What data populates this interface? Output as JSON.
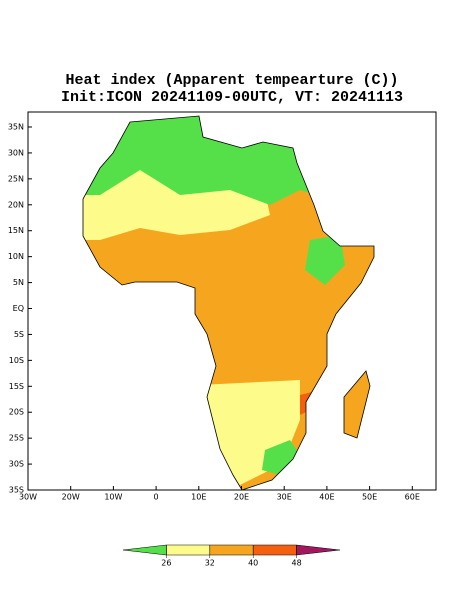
{
  "title": "Heat index (Apparent tempearture (C))",
  "subtitle": "Init:ICON 20241109-00UTC, VT: 20241113",
  "lat_labels": [
    "35N",
    "30N",
    "25N",
    "20N",
    "15N",
    "10N",
    "5N",
    "EQ",
    "5S",
    "10S",
    "15S",
    "20S",
    "25S",
    "30S",
    "35S"
  ],
  "lon_labels": [
    "30W",
    "20W",
    "10W",
    "0",
    "10E",
    "20E",
    "30E",
    "40E",
    "50E",
    "60E"
  ],
  "colorbar": {
    "colors": [
      "#55e04a",
      "#fdfb8a",
      "#f5a61e",
      "#f5600f",
      "#a3175f"
    ],
    "ticks": [
      26,
      32,
      40,
      48
    ]
  }
}
